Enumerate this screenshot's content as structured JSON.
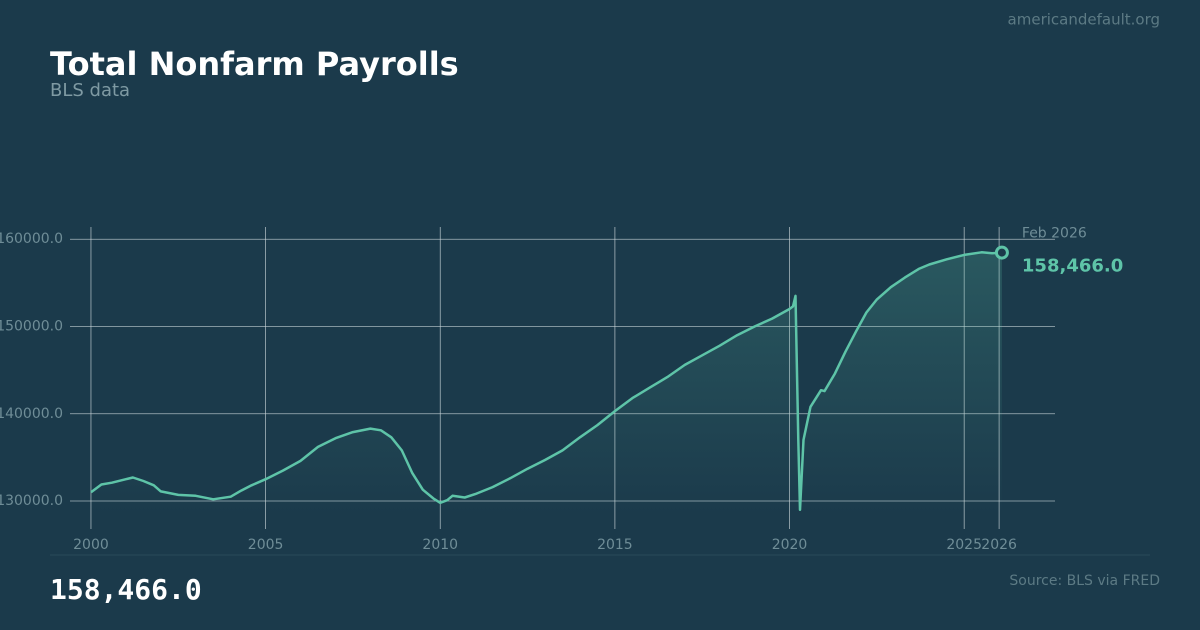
{
  "site": "americandefault.org",
  "source": "Source: BLS via FRED",
  "chart_data": {
    "type": "line",
    "title": "Total Nonfarm Payrolls",
    "subtitle": "BLS data",
    "grid": true,
    "xlim": [
      1999.4,
      2027.6
    ],
    "ylim": [
      128400,
      161400
    ],
    "xticks": [
      2000,
      2005,
      2010,
      2015,
      2020,
      2025,
      2026
    ],
    "yticks": [
      {
        "value": 130000,
        "label": "130000.0"
      },
      {
        "value": 140000,
        "label": "140000.0"
      },
      {
        "value": 150000,
        "label": "150000.0"
      },
      {
        "value": 160000,
        "label": "160000.0"
      }
    ],
    "series": [
      {
        "color": "#5ec4a8",
        "x": [
          2000.0,
          2000.3,
          2000.6,
          2001.0,
          2001.2,
          2001.5,
          2001.8,
          2002.0,
          2002.5,
          2003.0,
          2003.5,
          2004.0,
          2004.3,
          2004.6,
          2005.0,
          2005.5,
          2006.0,
          2006.5,
          2007.0,
          2007.5,
          2008.0,
          2008.3,
          2008.6,
          2008.9,
          2009.2,
          2009.5,
          2009.8,
          2010.0,
          2010.2,
          2010.35,
          2010.7,
          2011.0,
          2011.5,
          2012.0,
          2012.5,
          2013.0,
          2013.5,
          2014.0,
          2014.5,
          2015.0,
          2015.5,
          2016.0,
          2016.5,
          2017.0,
          2017.5,
          2018.0,
          2018.5,
          2019.0,
          2019.5,
          2020.0,
          2020.1,
          2020.17,
          2020.25,
          2020.3,
          2020.4,
          2020.6,
          2020.9,
          2021.0,
          2021.3,
          2021.6,
          2021.9,
          2022.2,
          2022.5,
          2022.9,
          2023.3,
          2023.7,
          2024.0,
          2024.5,
          2025.0,
          2025.5,
          2025.8,
          2026.08
        ],
        "values": [
          131000,
          131900,
          132100,
          132500,
          132700,
          132300,
          131800,
          131100,
          130700,
          130600,
          130200,
          130500,
          131200,
          131800,
          132500,
          133500,
          134600,
          136200,
          137200,
          137900,
          138300,
          138100,
          137300,
          135800,
          133200,
          131300,
          130300,
          129800,
          130100,
          130600,
          130400,
          130800,
          131600,
          132600,
          133700,
          134700,
          135800,
          137300,
          138700,
          140300,
          141800,
          143000,
          144200,
          145600,
          146700,
          147800,
          149000,
          150000,
          150900,
          152000,
          152300,
          153500,
          137000,
          129000,
          137000,
          140800,
          142700,
          142600,
          144600,
          147100,
          149400,
          151600,
          153100,
          154500,
          155600,
          156600,
          157100,
          157700,
          158200,
          158500,
          158400,
          158466
        ]
      }
    ],
    "current": {
      "label": "Feb 2026",
      "x": 2026.08,
      "value": 158466,
      "value_label": "158,466.0"
    }
  }
}
